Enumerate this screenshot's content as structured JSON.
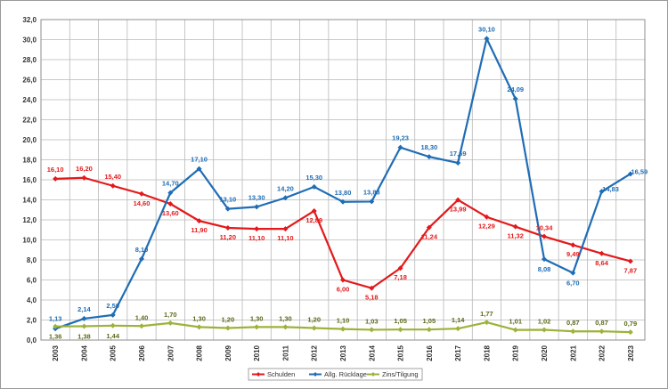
{
  "chart_data": {
    "type": "line",
    "title": "",
    "xlabel": "",
    "ylabel": "",
    "ylim": [
      0,
      32
    ],
    "ytick_step": 2,
    "ytick_labels": [
      "0,0",
      "2,0",
      "4,0",
      "6,0",
      "8,0",
      "10,0",
      "12,0",
      "14,0",
      "16,0",
      "18,0",
      "20,0",
      "22,0",
      "24,0",
      "26,0",
      "28,0",
      "30,0",
      "32,0"
    ],
    "grid": true,
    "legend_position": "bottom-center",
    "categories": [
      "2003",
      "2004",
      "2005",
      "2006",
      "2007",
      "2008",
      "2009",
      "2010",
      "2011",
      "2012",
      "2013",
      "2014",
      "2015",
      "2016",
      "2017",
      "2018",
      "2019",
      "2020",
      "2021",
      "2022",
      "2023"
    ],
    "series": [
      {
        "name": "Schulden",
        "color": "#e3191b",
        "values": [
          16.1,
          16.2,
          15.4,
          14.6,
          13.6,
          11.9,
          11.2,
          11.1,
          11.1,
          12.89,
          6.0,
          5.18,
          7.18,
          11.24,
          13.99,
          12.29,
          11.32,
          10.34,
          9.49,
          8.64,
          7.87
        ],
        "labels": [
          "16,10",
          "16,20",
          "15,40",
          "14,60",
          "13,60",
          "11,90",
          "11,20",
          "11,10",
          "11,10",
          "12,89",
          "6,00",
          "5,18",
          "7,18",
          "11,24",
          "13,99",
          "12,29",
          "11,32",
          "10,34",
          "9,49",
          "8,64",
          "7,87"
        ]
      },
      {
        "name": "Allg. Rücklage",
        "color": "#1f6db5",
        "values": [
          1.13,
          2.14,
          2.5,
          8.1,
          14.7,
          17.1,
          13.1,
          13.3,
          14.2,
          15.3,
          13.8,
          13.83,
          19.23,
          18.3,
          17.69,
          30.1,
          24.09,
          8.08,
          6.7,
          14.83,
          16.59
        ],
        "labels": [
          "1,13",
          "2,14",
          "2,50",
          "8,10",
          "14,70",
          "17,10",
          "13,10",
          "13,30",
          "14,20",
          "15,30",
          "13,80",
          "13,83",
          "19,23",
          "18,30",
          "17,69",
          "30,10",
          "24,09",
          "8,08",
          "6,70",
          "14,83",
          "16,59"
        ]
      },
      {
        "name": "Zins/Tilgung",
        "color": "#9bb33a",
        "label_color": "#5a6b1a",
        "values": [
          1.36,
          1.38,
          1.44,
          1.4,
          1.7,
          1.3,
          1.2,
          1.3,
          1.3,
          1.2,
          1.1,
          1.03,
          1.05,
          1.05,
          1.14,
          1.77,
          1.01,
          1.02,
          0.87,
          0.87,
          0.79
        ],
        "labels": [
          "1,36",
          "1,38",
          "1,44",
          "1,40",
          "1,70",
          "1,30",
          "1,20",
          "1,30",
          "1,30",
          "1,20",
          "1,10",
          "1,03",
          "1,05",
          "1,05",
          "1,14",
          "1,77",
          "1,01",
          "1,02",
          "0,87",
          "0,87",
          "0,79"
        ]
      }
    ]
  }
}
